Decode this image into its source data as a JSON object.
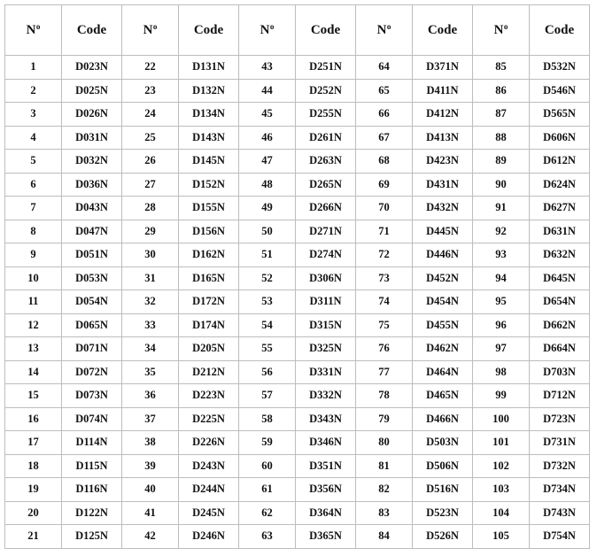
{
  "header": {
    "num_label": "N",
    "num_suffix": "o",
    "code_label": "Code"
  },
  "groups": [
    {
      "rows": [
        {
          "n": "1",
          "code": "D023N"
        },
        {
          "n": "2",
          "code": "D025N"
        },
        {
          "n": "3",
          "code": "D026N"
        },
        {
          "n": "4",
          "code": "D031N"
        },
        {
          "n": "5",
          "code": "D032N"
        },
        {
          "n": "6",
          "code": "D036N"
        },
        {
          "n": "7",
          "code": "D043N"
        },
        {
          "n": "8",
          "code": "D047N"
        },
        {
          "n": "9",
          "code": "D051N"
        },
        {
          "n": "10",
          "code": "D053N"
        },
        {
          "n": "11",
          "code": "D054N"
        },
        {
          "n": "12",
          "code": "D065N"
        },
        {
          "n": "13",
          "code": "D071N"
        },
        {
          "n": "14",
          "code": "D072N"
        },
        {
          "n": "15",
          "code": "D073N"
        },
        {
          "n": "16",
          "code": "D074N"
        },
        {
          "n": "17",
          "code": "D114N"
        },
        {
          "n": "18",
          "code": "D115N"
        },
        {
          "n": "19",
          "code": "D116N"
        },
        {
          "n": "20",
          "code": "D122N"
        },
        {
          "n": "21",
          "code": "D125N"
        }
      ]
    },
    {
      "rows": [
        {
          "n": "22",
          "code": "D131N"
        },
        {
          "n": "23",
          "code": "D132N"
        },
        {
          "n": "24",
          "code": "D134N"
        },
        {
          "n": "25",
          "code": "D143N"
        },
        {
          "n": "26",
          "code": "D145N"
        },
        {
          "n": "27",
          "code": "D152N"
        },
        {
          "n": "28",
          "code": "D155N"
        },
        {
          "n": "29",
          "code": "D156N"
        },
        {
          "n": "30",
          "code": "D162N"
        },
        {
          "n": "31",
          "code": "D165N"
        },
        {
          "n": "32",
          "code": "D172N"
        },
        {
          "n": "33",
          "code": "D174N"
        },
        {
          "n": "34",
          "code": "D205N"
        },
        {
          "n": "35",
          "code": "D212N"
        },
        {
          "n": "36",
          "code": "D223N"
        },
        {
          "n": "37",
          "code": "D225N"
        },
        {
          "n": "38",
          "code": "D226N"
        },
        {
          "n": "39",
          "code": "D243N"
        },
        {
          "n": "40",
          "code": "D244N"
        },
        {
          "n": "41",
          "code": "D245N"
        },
        {
          "n": "42",
          "code": "D246N"
        }
      ]
    },
    {
      "rows": [
        {
          "n": "43",
          "code": "D251N"
        },
        {
          "n": "44",
          "code": "D252N"
        },
        {
          "n": "45",
          "code": "D255N"
        },
        {
          "n": "46",
          "code": "D261N"
        },
        {
          "n": "47",
          "code": "D263N"
        },
        {
          "n": "48",
          "code": "D265N"
        },
        {
          "n": "49",
          "code": "D266N"
        },
        {
          "n": "50",
          "code": "D271N"
        },
        {
          "n": "51",
          "code": "D274N"
        },
        {
          "n": "52",
          "code": "D306N"
        },
        {
          "n": "53",
          "code": "D311N"
        },
        {
          "n": "54",
          "code": "D315N"
        },
        {
          "n": "55",
          "code": "D325N"
        },
        {
          "n": "56",
          "code": "D331N"
        },
        {
          "n": "57",
          "code": "D332N"
        },
        {
          "n": "58",
          "code": "D343N"
        },
        {
          "n": "59",
          "code": "D346N"
        },
        {
          "n": "60",
          "code": "D351N"
        },
        {
          "n": "61",
          "code": "D356N"
        },
        {
          "n": "62",
          "code": "D364N"
        },
        {
          "n": "63",
          "code": "D365N"
        }
      ]
    },
    {
      "rows": [
        {
          "n": "64",
          "code": "D371N"
        },
        {
          "n": "65",
          "code": "D411N"
        },
        {
          "n": "66",
          "code": "D412N"
        },
        {
          "n": "67",
          "code": "D413N"
        },
        {
          "n": "68",
          "code": "D423N"
        },
        {
          "n": "69",
          "code": "D431N"
        },
        {
          "n": "70",
          "code": "D432N"
        },
        {
          "n": "71",
          "code": "D445N"
        },
        {
          "n": "72",
          "code": "D446N"
        },
        {
          "n": "73",
          "code": "D452N"
        },
        {
          "n": "74",
          "code": "D454N"
        },
        {
          "n": "75",
          "code": "D455N"
        },
        {
          "n": "76",
          "code": "D462N"
        },
        {
          "n": "77",
          "code": "D464N"
        },
        {
          "n": "78",
          "code": "D465N"
        },
        {
          "n": "79",
          "code": "D466N"
        },
        {
          "n": "80",
          "code": "D503N"
        },
        {
          "n": "81",
          "code": "D506N"
        },
        {
          "n": "82",
          "code": "D516N"
        },
        {
          "n": "83",
          "code": "D523N"
        },
        {
          "n": "84",
          "code": "D526N"
        }
      ]
    },
    {
      "rows": [
        {
          "n": "85",
          "code": "D532N"
        },
        {
          "n": "86",
          "code": "D546N"
        },
        {
          "n": "87",
          "code": "D565N"
        },
        {
          "n": "88",
          "code": "D606N"
        },
        {
          "n": "89",
          "code": "D612N"
        },
        {
          "n": "90",
          "code": "D624N"
        },
        {
          "n": "91",
          "code": "D627N"
        },
        {
          "n": "92",
          "code": "D631N"
        },
        {
          "n": "93",
          "code": "D632N"
        },
        {
          "n": "94",
          "code": "D645N"
        },
        {
          "n": "95",
          "code": "D654N"
        },
        {
          "n": "96",
          "code": "D662N"
        },
        {
          "n": "97",
          "code": "D664N"
        },
        {
          "n": "98",
          "code": "D703N"
        },
        {
          "n": "99",
          "code": "D712N"
        },
        {
          "n": "100",
          "code": "D723N"
        },
        {
          "n": "101",
          "code": "D731N"
        },
        {
          "n": "102",
          "code": "D732N"
        },
        {
          "n": "103",
          "code": "D734N"
        },
        {
          "n": "104",
          "code": "D743N"
        },
        {
          "n": "105",
          "code": "D754N"
        }
      ]
    }
  ]
}
